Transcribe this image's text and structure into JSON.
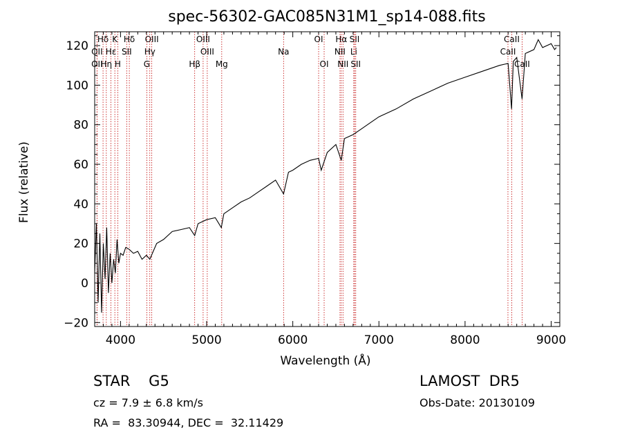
{
  "chart_data": {
    "type": "line",
    "title": "spec-56302-GAC085N31M1_sp14-088.fits",
    "xlabel": "Wavelength (Å)",
    "ylabel": "Flux (relative)",
    "xlim": [
      3700,
      9100
    ],
    "ylim": [
      -22,
      127
    ],
    "xticks": [
      4000,
      5000,
      6000,
      7000,
      8000,
      9000
    ],
    "yticks": [
      -20,
      0,
      20,
      40,
      60,
      80,
      100,
      120
    ],
    "grid": false,
    "series": [
      {
        "x": [
          3700,
          3720,
          3740,
          3760,
          3780,
          3800,
          3820,
          3840,
          3860,
          3880,
          3900,
          3920,
          3940,
          3960,
          3980,
          4000,
          4030,
          4060,
          4100,
          4150,
          4200,
          4250,
          4300,
          4340,
          4380,
          4420,
          4500,
          4600,
          4700,
          4800,
          4861,
          4900,
          5000,
          5100,
          5170,
          5200,
          5300,
          5400,
          5500,
          5600,
          5700,
          5800,
          5893,
          5950,
          6000,
          6100,
          6200,
          6300,
          6330,
          6400,
          6500,
          6563,
          6600,
          6700,
          6800,
          6900,
          7000,
          7200,
          7400,
          7600,
          7800,
          8000,
          8200,
          8400,
          8500,
          8540,
          8560,
          8600,
          8662,
          8700,
          8800,
          8850,
          8900,
          9000,
          9040,
          9060
        ],
        "y": [
          5,
          30,
          -10,
          25,
          -15,
          20,
          2,
          28,
          -5,
          15,
          0,
          12,
          5,
          22,
          10,
          15,
          14,
          18,
          17,
          15,
          16,
          12,
          14,
          12,
          16,
          20,
          22,
          26,
          27,
          28,
          24,
          30,
          32,
          33,
          28,
          35,
          38,
          41,
          43,
          46,
          49,
          52,
          45,
          56,
          57,
          60,
          62,
          63,
          57,
          66,
          70,
          62,
          73,
          75,
          78,
          81,
          84,
          88,
          93,
          97,
          101,
          104,
          107,
          110,
          111,
          88,
          112,
          114,
          93,
          116,
          118,
          123,
          119,
          121,
          118,
          119
        ]
      }
    ],
    "lines": [
      {
        "label": "Hδ",
        "x": 3797,
        "row": 0
      },
      {
        "label": "OII",
        "x": 3727,
        "row": 1
      },
      {
        "label": "OII",
        "x": 3727,
        "row": 2
      },
      {
        "label": "K",
        "x": 3934,
        "row": 0
      },
      {
        "label": "Hε",
        "x": 3889,
        "row": 1
      },
      {
        "label": "Hη",
        "x": 3835,
        "row": 2
      },
      {
        "label": "H",
        "x": 3968,
        "row": 2
      },
      {
        "label": "Hδ",
        "x": 4102,
        "row": 0
      },
      {
        "label": "SII",
        "x": 4072,
        "row": 1
      },
      {
        "label": "OIII",
        "x": 4363,
        "row": 0
      },
      {
        "label": "Hγ",
        "x": 4340,
        "row": 1
      },
      {
        "label": "G",
        "x": 4305,
        "row": 2
      },
      {
        "label": "Hβ",
        "x": 4861,
        "row": 2
      },
      {
        "label": "OIII",
        "x": 4959,
        "row": 0
      },
      {
        "label": "OIII",
        "x": 5007,
        "row": 1
      },
      {
        "label": "Mg",
        "x": 5175,
        "row": 2
      },
      {
        "label": "Na",
        "x": 5893,
        "row": 1
      },
      {
        "label": "OI",
        "x": 6300,
        "row": 0
      },
      {
        "label": "OI",
        "x": 6364,
        "row": 2
      },
      {
        "label": "Hα",
        "x": 6563,
        "row": 0
      },
      {
        "label": "NII",
        "x": 6548,
        "row": 1
      },
      {
        "label": "NII",
        "x": 6583,
        "row": 2
      },
      {
        "label": "SII",
        "x": 6717,
        "row": 0
      },
      {
        "label": "Li",
        "x": 6708,
        "row": 1
      },
      {
        "label": "SII",
        "x": 6731,
        "row": 2
      },
      {
        "label": "CaII",
        "x": 8542,
        "row": 0
      },
      {
        "label": "CaII",
        "x": 8498,
        "row": 1
      },
      {
        "label": "CaII",
        "x": 8662,
        "row": 2
      }
    ]
  },
  "info": {
    "classification": "STAR    G5",
    "survey": "LAMOST  DR5",
    "redshift": "cz = 7.9 ± 6.8 km/s",
    "obs_date": "Obs-Date: 20130109",
    "coords": "RA =  83.30944, DEC =  32.11429"
  }
}
